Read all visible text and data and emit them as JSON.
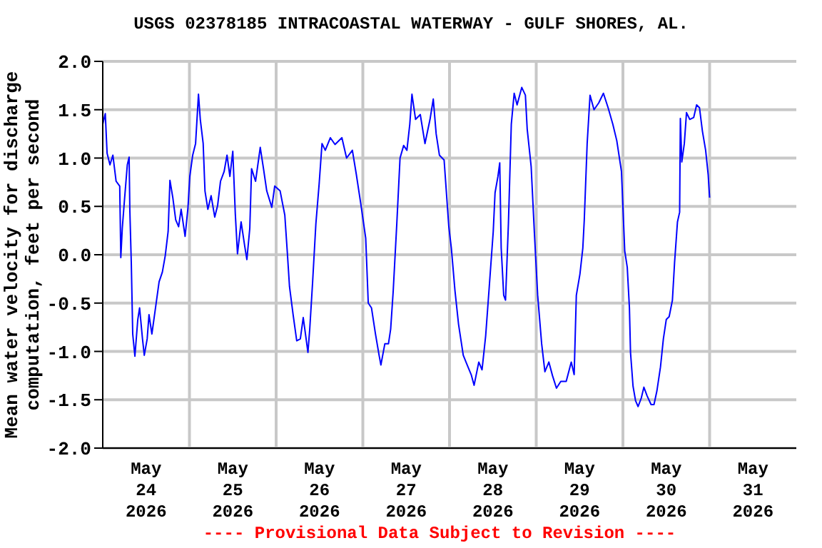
{
  "chart_data": {
    "type": "line",
    "title": "USGS 02378185 INTRACOASTAL WATERWAY - GULF SHORES, AL.",
    "ylabel": "Mean water velocity for discharge computation, feet per second",
    "annotations": [
      "---- Provisional Data Subject to Revision ----"
    ],
    "grid": true,
    "marker": "none",
    "line_style": "solid",
    "xlim": [
      "2026-05-24",
      "2026-06-01"
    ],
    "xticks": [
      {
        "value": "2026-05-24T12:00",
        "label": "May\n24\n2026"
      },
      {
        "value": "2026-05-25",
        "label": null
      },
      {
        "value": "2026-05-25T12:00",
        "label": "May\n25\n2026"
      },
      {
        "value": "2026-05-26",
        "label": null
      },
      {
        "value": "2026-05-26T12:00",
        "label": "May\n26\n2026"
      },
      {
        "value": "2026-05-27",
        "label": null
      },
      {
        "value": "2026-05-27T12:00",
        "label": "May\n27\n2026"
      },
      {
        "value": "2026-05-28",
        "label": null
      },
      {
        "value": "2026-05-28T12:00",
        "label": "May\n28\n2026"
      },
      {
        "value": "2026-05-29",
        "label": null
      },
      {
        "value": "2026-05-29T12:00",
        "label": "May\n29\n2026"
      },
      {
        "value": "2026-05-30",
        "label": null
      },
      {
        "value": "2026-05-30T12:00",
        "label": "May\n30\n2026"
      },
      {
        "value": "2026-05-31",
        "label": null
      },
      {
        "value": "2026-05-31T12:00",
        "label": "May\n31\n2026"
      }
    ],
    "ylim": [
      -2.0,
      2.0
    ],
    "yticks": [
      {
        "value": -2,
        "label": "-2.0"
      },
      {
        "value": -1.5,
        "label": "-1.5"
      },
      {
        "value": -1,
        "label": "-1.0"
      },
      {
        "value": -0.5,
        "label": "-0.5"
      },
      {
        "value": 0,
        "label": "0.0"
      },
      {
        "value": 0.5,
        "label": "0.5"
      },
      {
        "value": 1,
        "label": "1.0"
      },
      {
        "value": 1.5,
        "label": "1.5"
      },
      {
        "value": 2,
        "label": "2.0"
      }
    ],
    "series": [
      {
        "color": "#0000ff",
        "x": [
          "2026-05-24T00:00",
          "2026-05-24T00:42",
          "2026-05-24T01:12",
          "2026-05-24T02:00",
          "2026-05-24T02:48",
          "2026-05-24T03:42",
          "2026-05-24T04:42",
          "2026-05-24T05:00",
          "2026-05-24T05:24",
          "2026-05-24T06:00",
          "2026-05-24T06:48",
          "2026-05-24T07:18",
          "2026-05-24T07:30",
          "2026-05-24T07:54",
          "2026-05-24T08:18",
          "2026-05-24T08:54",
          "2026-05-24T09:42",
          "2026-05-24T10:12",
          "2026-05-24T11:00",
          "2026-05-24T11:30",
          "2026-05-24T12:18",
          "2026-05-24T12:48",
          "2026-05-24T13:36",
          "2026-05-24T14:36",
          "2026-05-24T15:36",
          "2026-05-24T16:30",
          "2026-05-24T17:18",
          "2026-05-24T18:06",
          "2026-05-24T18:36",
          "2026-05-24T19:24",
          "2026-05-24T20:12",
          "2026-05-24T21:00",
          "2026-05-24T21:42",
          "2026-05-24T22:48",
          "2026-05-24T23:36",
          "2026-05-25T00:06",
          "2026-05-25T00:54",
          "2026-05-25T01:42",
          "2026-05-25T02:30",
          "2026-05-25T03:00",
          "2026-05-25T03:48",
          "2026-05-25T04:18",
          "2026-05-25T05:06",
          "2026-05-25T06:00",
          "2026-05-25T07:00",
          "2026-05-25T07:48",
          "2026-05-25T08:36",
          "2026-05-25T09:36",
          "2026-05-25T10:24",
          "2026-05-25T11:12",
          "2026-05-25T12:00",
          "2026-05-25T12:42",
          "2026-05-25T13:18",
          "2026-05-25T14:18",
          "2026-05-25T15:18",
          "2026-05-25T15:54",
          "2026-05-25T16:42",
          "2026-05-25T17:12",
          "2026-05-25T18:18",
          "2026-05-25T19:36",
          "2026-05-25T20:30",
          "2026-05-25T21:24",
          "2026-05-25T22:48",
          "2026-05-25T23:36",
          "2026-05-26T01:06",
          "2026-05-26T02:24",
          "2026-05-26T03:06",
          "2026-05-26T03:42",
          "2026-05-26T04:42",
          "2026-05-26T05:42",
          "2026-05-26T06:42",
          "2026-05-26T07:30",
          "2026-05-26T08:18",
          "2026-05-26T08:48",
          "2026-05-26T09:18",
          "2026-05-26T10:06",
          "2026-05-26T11:00",
          "2026-05-26T11:54",
          "2026-05-26T12:42",
          "2026-05-26T13:36",
          "2026-05-26T15:00",
          "2026-05-26T16:18",
          "2026-05-26T18:12",
          "2026-05-26T19:30",
          "2026-05-26T21:06",
          "2026-05-26T22:12",
          "2026-05-26T23:30",
          "2026-05-27T00:48",
          "2026-05-27T01:30",
          "2026-05-27T02:24",
          "2026-05-27T03:30",
          "2026-05-27T04:30",
          "2026-05-27T05:00",
          "2026-05-27T06:06",
          "2026-05-27T07:06",
          "2026-05-27T07:42",
          "2026-05-27T08:24",
          "2026-05-27T09:24",
          "2026-05-27T10:18",
          "2026-05-27T11:18",
          "2026-05-27T12:12",
          "2026-05-27T13:00",
          "2026-05-27T13:36",
          "2026-05-27T14:36",
          "2026-05-27T15:54",
          "2026-05-27T17:12",
          "2026-05-27T18:36",
          "2026-05-27T19:30",
          "2026-05-27T20:18",
          "2026-05-27T21:12",
          "2026-05-27T22:30",
          "2026-05-27T23:48",
          "2026-05-28T00:30",
          "2026-05-28T01:30",
          "2026-05-28T02:30",
          "2026-05-28T03:48",
          "2026-05-28T05:06",
          "2026-05-28T06:00",
          "2026-05-28T06:48",
          "2026-05-28T08:06",
          "2026-05-28T09:00",
          "2026-05-28T10:00",
          "2026-05-28T11:00",
          "2026-05-28T12:06",
          "2026-05-28T12:36",
          "2026-05-28T13:24",
          "2026-05-28T13:54",
          "2026-05-28T14:18",
          "2026-05-28T15:00",
          "2026-05-28T15:30",
          "2026-05-28T16:18",
          "2026-05-28T17:06",
          "2026-05-28T17:54",
          "2026-05-28T18:42",
          "2026-05-28T20:00",
          "2026-05-28T21:00",
          "2026-05-28T21:30",
          "2026-05-28T22:36",
          "2026-05-28T23:30",
          "2026-05-29T00:24",
          "2026-05-29T01:30",
          "2026-05-29T02:24",
          "2026-05-29T03:30",
          "2026-05-29T04:30",
          "2026-05-29T05:36",
          "2026-05-29T06:48",
          "2026-05-29T08:18",
          "2026-05-29T09:42",
          "2026-05-29T10:30",
          "2026-05-29T11:06",
          "2026-05-29T12:06",
          "2026-05-29T12:54",
          "2026-05-29T13:18",
          "2026-05-29T14:06",
          "2026-05-29T14:54",
          "2026-05-29T16:00",
          "2026-05-29T17:18",
          "2026-05-29T18:36",
          "2026-05-29T19:54",
          "2026-05-29T21:12",
          "2026-05-29T22:18",
          "2026-05-29T23:36",
          "2026-05-30T00:30",
          "2026-05-30T01:12",
          "2026-05-30T01:48",
          "2026-05-30T02:06",
          "2026-05-30T02:48",
          "2026-05-30T03:30",
          "2026-05-30T04:12",
          "2026-05-30T05:06",
          "2026-05-30T05:48",
          "2026-05-30T06:42",
          "2026-05-30T07:48",
          "2026-05-30T08:36",
          "2026-05-30T09:24",
          "2026-05-30T10:24",
          "2026-05-30T11:12",
          "2026-05-30T12:00",
          "2026-05-30T12:48",
          "2026-05-30T13:42",
          "2026-05-30T14:18",
          "2026-05-30T15:06",
          "2026-05-30T15:42",
          "2026-05-30T15:54",
          "2026-05-30T16:18",
          "2026-05-30T17:00",
          "2026-05-30T17:36",
          "2026-05-30T18:30",
          "2026-05-30T19:36",
          "2026-05-30T20:24",
          "2026-05-30T21:12",
          "2026-05-30T22:00",
          "2026-05-30T22:54",
          "2026-05-30T23:36",
          "2026-05-31T00:00"
        ],
        "values": [
          1.35,
          1.46,
          1.05,
          0.93,
          1.03,
          0.76,
          0.71,
          -0.03,
          0.27,
          0.56,
          0.93,
          1.01,
          0.46,
          -0.08,
          -0.82,
          -1.05,
          -0.67,
          -0.55,
          -0.87,
          -1.04,
          -0.87,
          -0.62,
          -0.82,
          -0.55,
          -0.28,
          -0.18,
          -0.01,
          0.24,
          0.77,
          0.59,
          0.36,
          0.29,
          0.47,
          0.19,
          0.49,
          0.81,
          1.03,
          1.15,
          1.66,
          1.4,
          1.15,
          0.66,
          0.47,
          0.61,
          0.39,
          0.51,
          0.76,
          0.86,
          1.03,
          0.81,
          1.07,
          0.42,
          0.01,
          0.34,
          0.09,
          -0.05,
          0.27,
          0.89,
          0.76,
          1.11,
          0.89,
          0.66,
          0.49,
          0.71,
          0.66,
          0.41,
          0.02,
          -0.33,
          -0.62,
          -0.89,
          -0.87,
          -0.65,
          -0.87,
          -1.01,
          -0.77,
          -0.28,
          0.32,
          0.73,
          1.15,
          1.08,
          1.21,
          1.14,
          1.21,
          1.0,
          1.08,
          0.83,
          0.51,
          0.17,
          -0.5,
          -0.55,
          -0.82,
          -1.04,
          -1.14,
          -0.92,
          -0.92,
          -0.77,
          -0.38,
          0.32,
          1.0,
          1.13,
          1.08,
          1.35,
          1.66,
          1.4,
          1.45,
          1.15,
          1.4,
          1.61,
          1.25,
          1.03,
          0.98,
          0.29,
          0.07,
          -0.37,
          -0.72,
          -1.04,
          -1.16,
          -1.24,
          -1.35,
          -1.11,
          -1.19,
          -0.84,
          -0.33,
          0.24,
          0.64,
          0.81,
          0.95,
          0.07,
          -0.42,
          -0.47,
          0.32,
          1.35,
          1.67,
          1.55,
          1.73,
          1.65,
          1.3,
          0.91,
          0.22,
          -0.42,
          -0.92,
          -1.21,
          -1.11,
          -1.25,
          -1.38,
          -1.31,
          -1.31,
          -1.11,
          -1.24,
          -0.42,
          -0.2,
          0.07,
          0.36,
          1.15,
          1.65,
          1.5,
          1.57,
          1.67,
          1.52,
          1.35,
          1.18,
          0.86,
          0.04,
          -0.13,
          -0.55,
          -1.01,
          -1.36,
          -1.51,
          -1.57,
          -1.48,
          -1.37,
          -1.46,
          -1.55,
          -1.55,
          -1.41,
          -1.16,
          -0.87,
          -0.67,
          -0.64,
          -0.47,
          -0.08,
          0.34,
          0.44,
          1.41,
          0.96,
          1.15,
          1.47,
          1.4,
          1.42,
          1.55,
          1.52,
          1.28,
          1.08,
          0.83,
          0.59
        ]
      }
    ]
  }
}
